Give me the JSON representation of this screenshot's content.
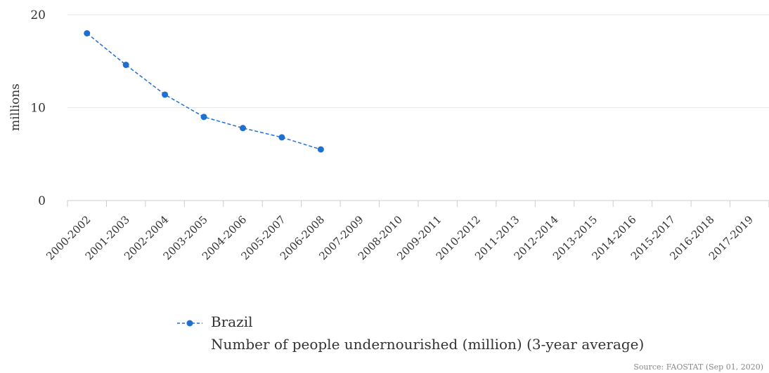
{
  "chart_data": {
    "type": "line",
    "categories": [
      "2000-2002",
      "2001-2003",
      "2002-2004",
      "2003-2005",
      "2004-2006",
      "2005-2007",
      "2006-2008",
      "2007-2009",
      "2008-2010",
      "2009-2011",
      "2010-2012",
      "2011-2013",
      "2012-2014",
      "2013-2015",
      "2014-2016",
      "2015-2017",
      "2016-2018",
      "2017-2019"
    ],
    "series": [
      {
        "name": "Brazil",
        "values": [
          18.0,
          14.6,
          11.4,
          9.0,
          7.8,
          6.8,
          5.5,
          null,
          null,
          null,
          null,
          null,
          null,
          null,
          null,
          null,
          null,
          null
        ]
      }
    ],
    "yticks": [
      "0",
      "10",
      "20"
    ],
    "ylim": [
      0,
      20
    ],
    "ylabel": "millions",
    "xlabel": "",
    "grid": true,
    "legend_position": "bottom"
  },
  "legend": {
    "series_name": "Brazil",
    "description": "Number of people undernourished (million) (3-year average)"
  },
  "source": "Source: FAOSTAT (Sep 01, 2020)",
  "colors": {
    "series": "#1f6fd1",
    "grid": "#e6e6e6",
    "axis": "#cccccc"
  }
}
